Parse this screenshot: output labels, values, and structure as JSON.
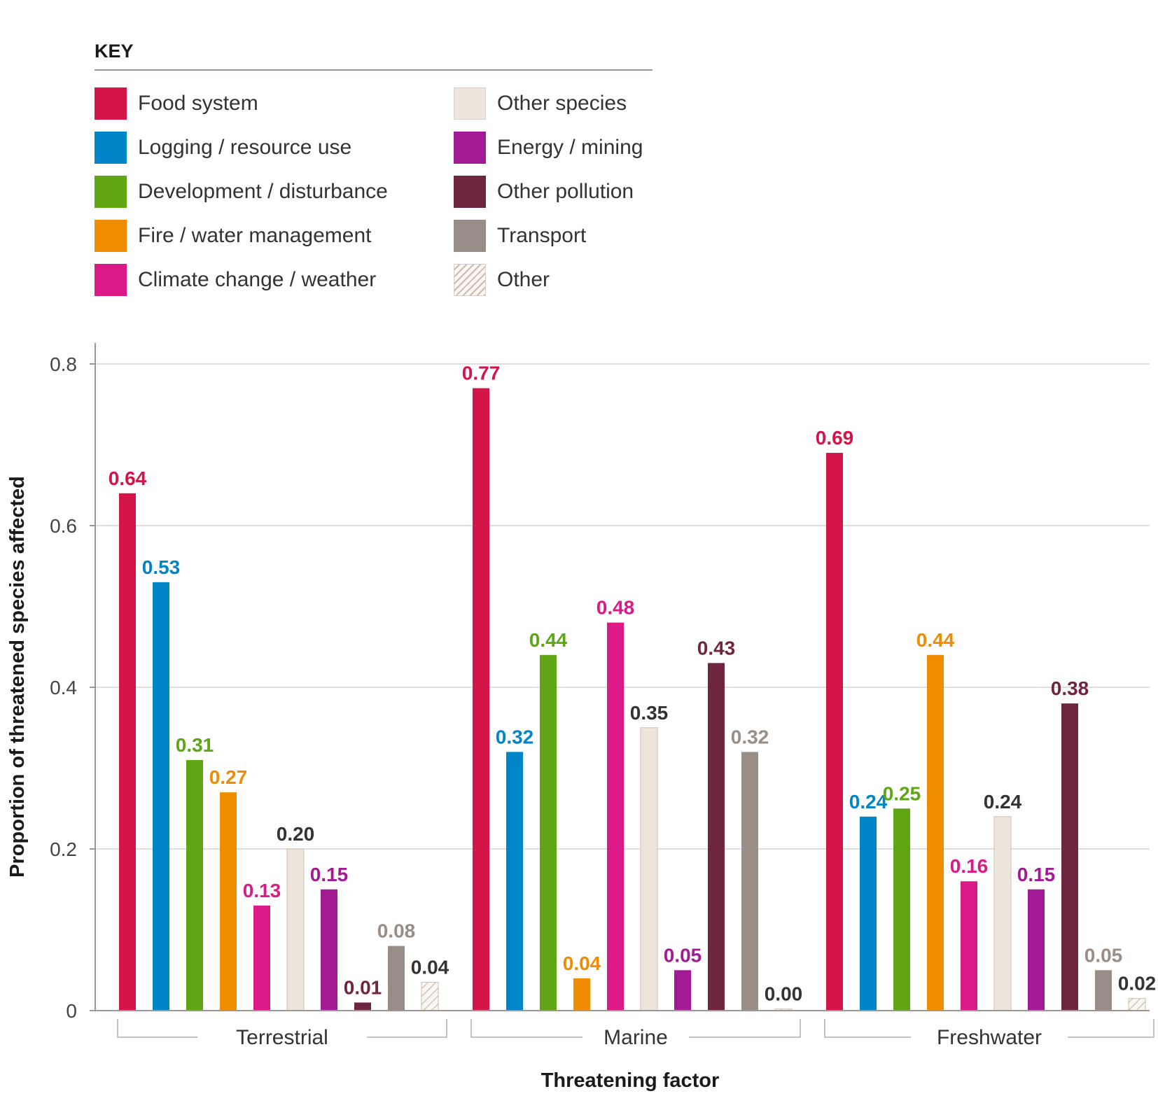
{
  "legend": {
    "title": "KEY",
    "items": [
      {
        "label": "Food system",
        "color": "#D4154A"
      },
      {
        "label": "Logging / resource use",
        "color": "#0085C8"
      },
      {
        "label": "Development / disturbance",
        "color": "#5FA514"
      },
      {
        "label": "Fire / water management",
        "color": "#F08C00"
      },
      {
        "label": "Climate change / weather",
        "color": "#DC1A87"
      },
      {
        "label": "Other species",
        "color": "#EDE5DC"
      },
      {
        "label": "Energy / mining",
        "color": "#A21A94"
      },
      {
        "label": "Other pollution",
        "color": "#6E2540"
      },
      {
        "label": "Transport",
        "color": "#998E87"
      },
      {
        "label": "Other",
        "color": "hatched"
      }
    ]
  },
  "chart_data": {
    "type": "bar",
    "categories": [
      "Terrestrial",
      "Marine",
      "Freshwater"
    ],
    "xlabel": "Threatening factor",
    "ylabel": "Proportion of threatened species affected",
    "ylim": [
      0,
      0.8
    ],
    "yticks": [
      "0",
      "0.2",
      "0.4",
      "0.6",
      "0.8"
    ],
    "grid": true,
    "series": [
      {
        "name": "Food system",
        "color": "#D4154A",
        "label_color": "#D4154A",
        "values": [
          0.64,
          0.77,
          0.69
        ],
        "labels": [
          "0.64",
          "0.77",
          "0.69"
        ]
      },
      {
        "name": "Logging / resource use",
        "color": "#0085C8",
        "label_color": "#0085C8",
        "values": [
          0.53,
          0.32,
          0.24
        ],
        "labels": [
          "0.53",
          "0.32",
          "0.24"
        ]
      },
      {
        "name": "Development / disturbance",
        "color": "#5FA514",
        "label_color": "#5FA514",
        "values": [
          0.31,
          0.44,
          0.25
        ],
        "labels": [
          "0.31",
          "0.44",
          "0.25"
        ]
      },
      {
        "name": "Fire / water management",
        "color": "#F08C00",
        "label_color": "#F08C00",
        "values": [
          0.27,
          0.04,
          0.44
        ],
        "labels": [
          "0.27",
          "0.04",
          "0.44"
        ]
      },
      {
        "name": "Climate change / weather",
        "color": "#DC1A87",
        "label_color": "#DC1A87",
        "values": [
          0.13,
          0.48,
          0.16
        ],
        "labels": [
          "0.13",
          "0.48",
          "0.16"
        ]
      },
      {
        "name": "Other species",
        "color": "#EDE5DC",
        "label_color": "#333333",
        "values": [
          0.2,
          0.35,
          0.24
        ],
        "labels": [
          "0.20",
          "0.35",
          "0.24"
        ]
      },
      {
        "name": "Energy / mining",
        "color": "#A21A94",
        "label_color": "#A21A94",
        "values": [
          0.15,
          0.05,
          0.15
        ],
        "labels": [
          "0.15",
          "0.05",
          "0.15"
        ]
      },
      {
        "name": "Other pollution",
        "color": "#6E2540",
        "label_color": "#6E2540",
        "values": [
          0.01,
          0.43,
          0.38
        ],
        "labels": [
          "0.01",
          "0.43",
          "0.38"
        ]
      },
      {
        "name": "Transport",
        "color": "#998E87",
        "label_color": "#998E87",
        "values": [
          0.08,
          0.32,
          0.05
        ],
        "labels": [
          "0.08",
          "0.32",
          "0.05"
        ]
      },
      {
        "name": "Other",
        "color": "hatched",
        "label_color": "#333333",
        "values": [
          0.035,
          0.002,
          0.015
        ],
        "labels": [
          "0.04",
          "0.00",
          "0.02"
        ]
      }
    ]
  }
}
